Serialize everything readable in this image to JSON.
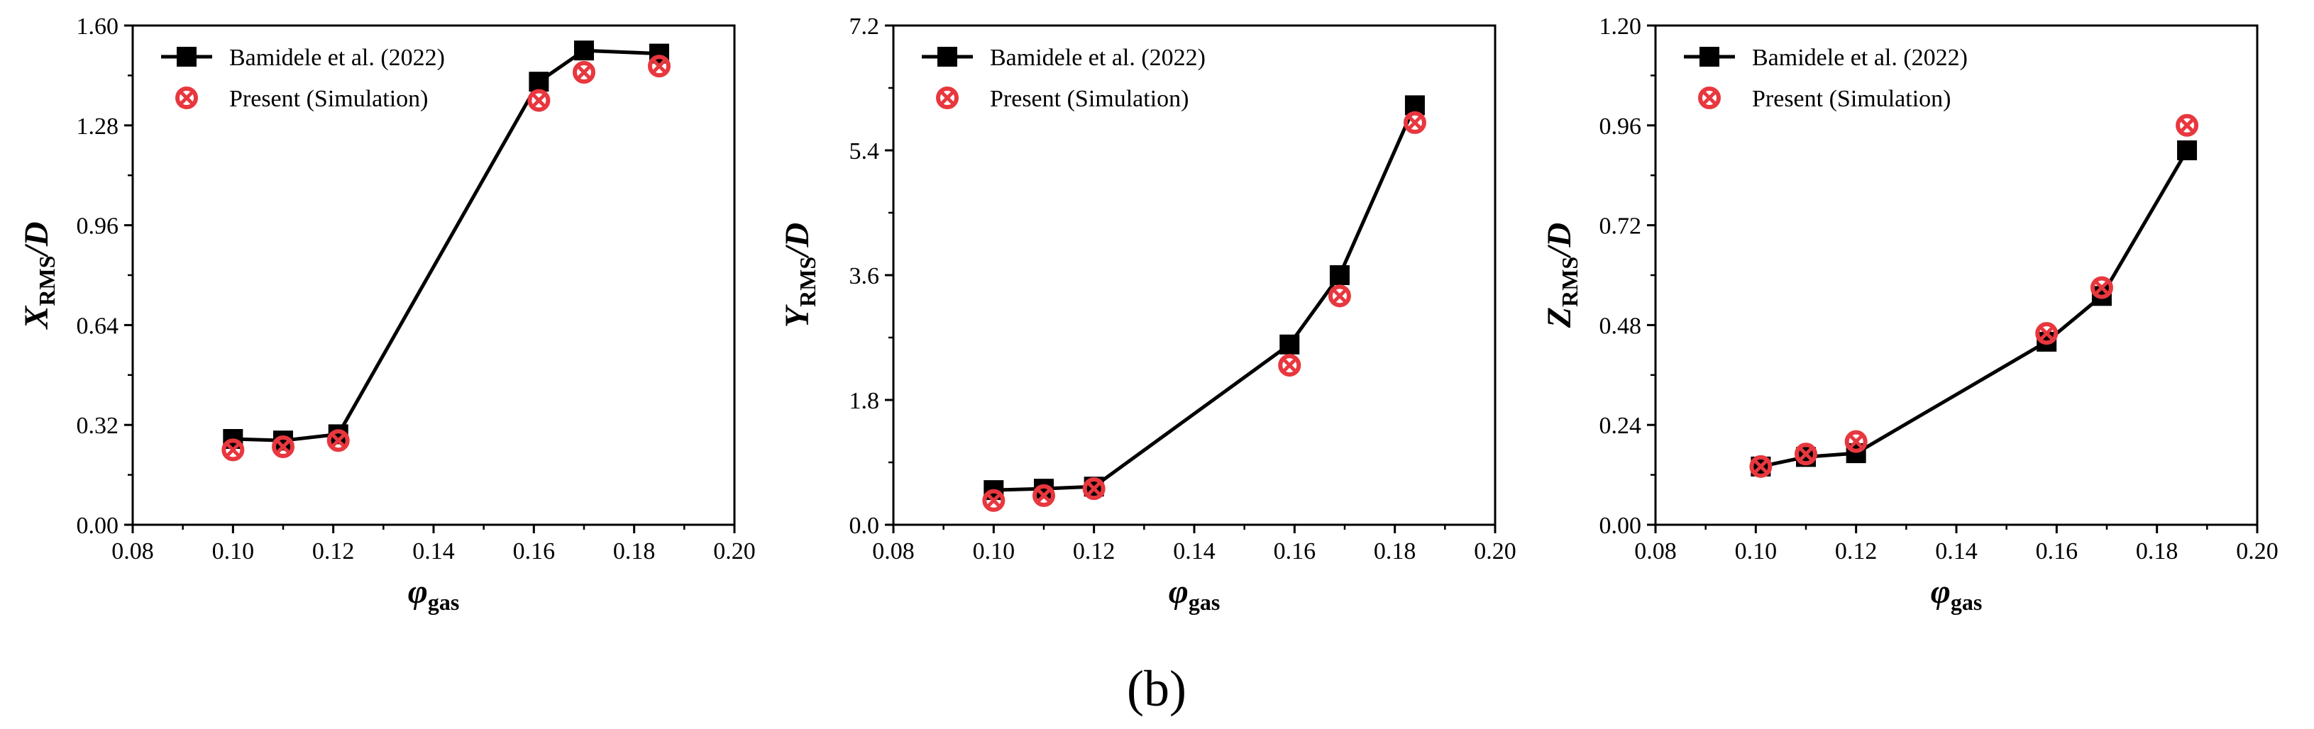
{
  "figure_label": "(b)",
  "chart_data": [
    {
      "type": "line",
      "xlabel": {
        "symbol": "φ",
        "subscript": "gas"
      },
      "ylabel": {
        "symbol": "X",
        "subscript": "RMS",
        "suffix": "/D"
      },
      "xlim": [
        0.08,
        0.2
      ],
      "ylim": [
        0.0,
        1.6
      ],
      "xticks": [
        "0.08",
        "0.10",
        "0.12",
        "0.14",
        "0.16",
        "0.18",
        "0.20"
      ],
      "yticks": [
        "0.00",
        "0.32",
        "0.64",
        "0.96",
        "1.28",
        "1.60"
      ],
      "legend": "top-left",
      "series": [
        {
          "name": "Bamidele et al. (2022)",
          "marker": "square",
          "color": "#000000",
          "line": true,
          "x": [
            0.1,
            0.11,
            0.121,
            0.161,
            0.17,
            0.185
          ],
          "y": [
            0.275,
            0.27,
            0.29,
            1.42,
            1.52,
            1.51
          ]
        },
        {
          "name": "Present (Simulation)",
          "marker": "circle-x",
          "color": "#e8373e",
          "line": false,
          "x": [
            0.1,
            0.11,
            0.121,
            0.161,
            0.17,
            0.185
          ],
          "y": [
            0.24,
            0.25,
            0.27,
            1.36,
            1.45,
            1.47
          ]
        }
      ]
    },
    {
      "type": "line",
      "xlabel": {
        "symbol": "φ",
        "subscript": "gas"
      },
      "ylabel": {
        "symbol": "Y",
        "subscript": "RMS",
        "suffix": "/D"
      },
      "xlim": [
        0.08,
        0.2
      ],
      "ylim": [
        0.0,
        7.2
      ],
      "xticks": [
        "0.08",
        "0.10",
        "0.12",
        "0.14",
        "0.16",
        "0.18",
        "0.20"
      ],
      "yticks": [
        "0.0",
        "1.8",
        "3.6",
        "5.4",
        "7.2"
      ],
      "legend": "top-left",
      "series": [
        {
          "name": "Bamidele et al. (2022)",
          "marker": "square",
          "color": "#000000",
          "line": true,
          "x": [
            0.1,
            0.11,
            0.12,
            0.159,
            0.169,
            0.184
          ],
          "y": [
            0.5,
            0.52,
            0.55,
            2.6,
            3.6,
            6.05
          ]
        },
        {
          "name": "Present (Simulation)",
          "marker": "circle-x",
          "color": "#e8373e",
          "line": false,
          "x": [
            0.1,
            0.11,
            0.12,
            0.159,
            0.169,
            0.184
          ],
          "y": [
            0.35,
            0.42,
            0.52,
            2.3,
            3.3,
            5.8
          ]
        }
      ]
    },
    {
      "type": "line",
      "xlabel": {
        "symbol": "φ",
        "subscript": "gas"
      },
      "ylabel": {
        "symbol": "Z",
        "subscript": "RMS",
        "suffix": "/D"
      },
      "xlim": [
        0.08,
        0.2
      ],
      "ylim": [
        0.0,
        1.2
      ],
      "xticks": [
        "0.08",
        "0.10",
        "0.12",
        "0.14",
        "0.16",
        "0.18",
        "0.20"
      ],
      "yticks": [
        "0.00",
        "0.24",
        "0.48",
        "0.72",
        "0.96",
        "1.20"
      ],
      "legend": "top-left",
      "series": [
        {
          "name": "Bamidele et al. (2022)",
          "marker": "square",
          "color": "#000000",
          "line": true,
          "x": [
            0.101,
            0.11,
            0.12,
            0.158,
            0.169,
            0.186
          ],
          "y": [
            0.14,
            0.163,
            0.172,
            0.44,
            0.55,
            0.9
          ]
        },
        {
          "name": "Present (Simulation)",
          "marker": "circle-x",
          "color": "#e8373e",
          "line": false,
          "x": [
            0.101,
            0.11,
            0.12,
            0.158,
            0.169,
            0.186
          ],
          "y": [
            0.14,
            0.17,
            0.2,
            0.46,
            0.57,
            0.96
          ]
        }
      ]
    }
  ]
}
